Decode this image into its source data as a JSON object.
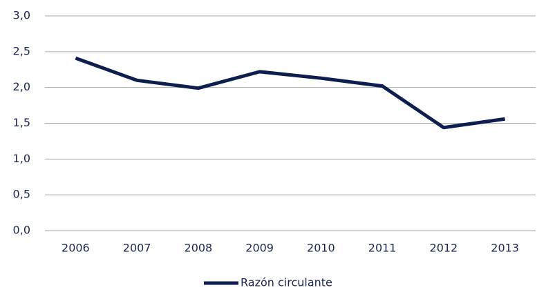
{
  "chart_data": {
    "type": "line",
    "categories": [
      "2006",
      "2007",
      "2008",
      "2009",
      "2010",
      "2011",
      "2012",
      "2013"
    ],
    "series": [
      {
        "name": "Razón circulante",
        "color": "#0e1f4f",
        "values": [
          2.41,
          2.1,
          1.99,
          2.22,
          2.13,
          2.02,
          1.44,
          1.56
        ]
      }
    ],
    "ylim": [
      0,
      3
    ],
    "yticks": [
      {
        "value": 0,
        "label": "0,0"
      },
      {
        "value": 0.5,
        "label": "0,5"
      },
      {
        "value": 1,
        "label": "1,0"
      },
      {
        "value": 1.5,
        "label": "1,5"
      },
      {
        "value": 2,
        "label": "2,0"
      },
      {
        "value": 2.5,
        "label": "2,5"
      },
      {
        "value": 3,
        "label": "3,0"
      }
    ],
    "grid": true,
    "legend": "bottom"
  }
}
